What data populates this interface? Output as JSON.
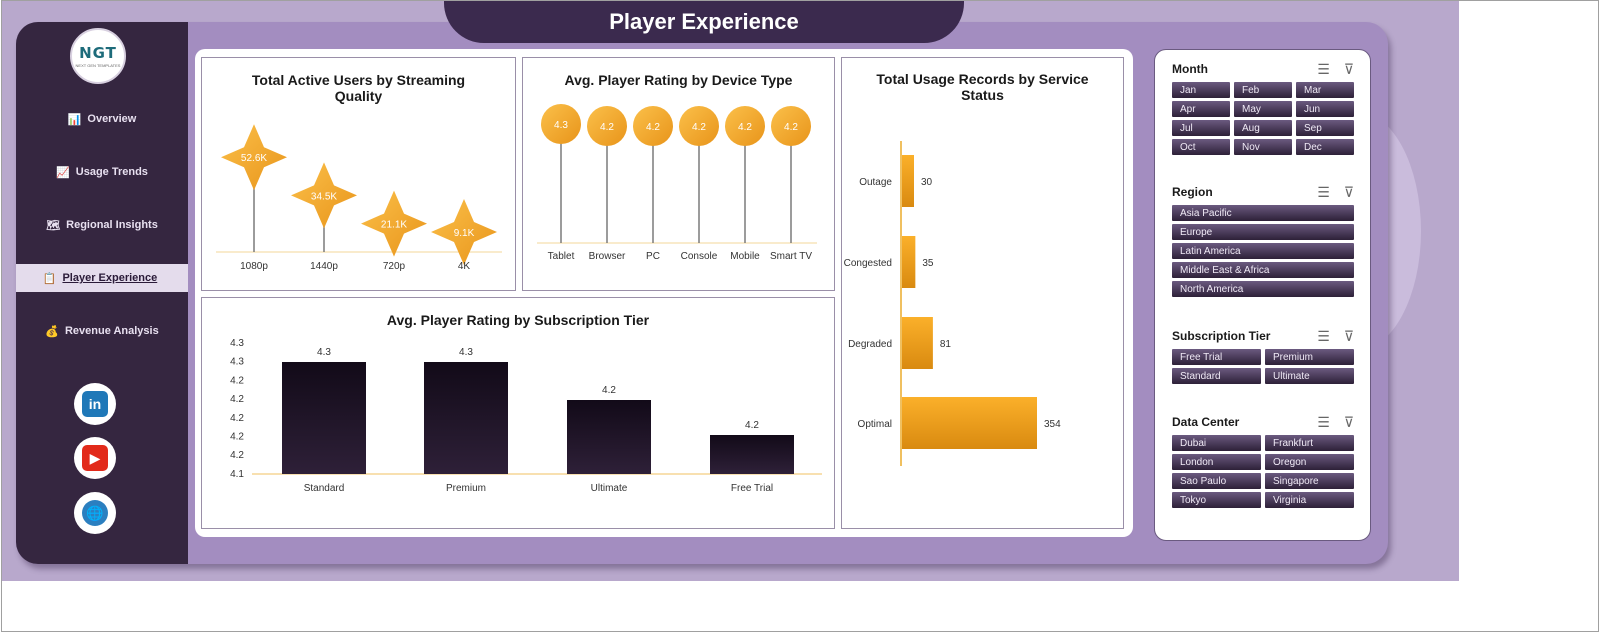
{
  "header": {
    "title": "Player Experience"
  },
  "logo": {
    "text": "NGT",
    "subtext": "NEXT GEN TEMPLATES"
  },
  "sidebar": {
    "items": [
      {
        "label": "Overview",
        "icon": "📊"
      },
      {
        "label": "Usage Trends",
        "icon": "📈"
      },
      {
        "label": "Regional Insights",
        "icon": "🗺"
      },
      {
        "label": "Player Experience",
        "icon": "📋"
      },
      {
        "label": "Revenue Analysis",
        "icon": "💰"
      }
    ],
    "social": [
      {
        "name": "linkedin-icon",
        "glyph": "in"
      },
      {
        "name": "youtube-icon",
        "glyph": "▶"
      },
      {
        "name": "web-icon",
        "glyph": "🌐"
      }
    ]
  },
  "charts": {
    "streaming": {
      "title": "Total Active Users by Streaming Quality",
      "chart_data": {
        "type": "lollipop",
        "categories": [
          "1080p",
          "1440p",
          "720p",
          "4K"
        ],
        "values": [
          52.6,
          34.5,
          21.1,
          9.1
        ],
        "labels": [
          "52.6K",
          "34.5K",
          "21.1K",
          "9.1K"
        ]
      }
    },
    "device": {
      "title": "Avg. Player Rating by Device Type",
      "chart_data": {
        "type": "lollipop",
        "categories": [
          "Tablet",
          "Browser",
          "PC",
          "Console",
          "Mobile",
          "Smart TV"
        ],
        "values": [
          4.3,
          4.2,
          4.2,
          4.2,
          4.2,
          4.2
        ]
      }
    },
    "service": {
      "title": "Total Usage Records by Service Status",
      "chart_data": {
        "type": "bar-horizontal",
        "categories": [
          "Outage",
          "Congested",
          "Degraded",
          "Optimal"
        ],
        "values": [
          30,
          35,
          81,
          354
        ]
      }
    },
    "tier": {
      "title": "Avg. Player Rating by Subscription Tier",
      "chart_data": {
        "type": "bar",
        "categories": [
          "Standard",
          "Premium",
          "Ultimate",
          "Free Trial"
        ],
        "values": [
          4.3,
          4.3,
          4.2,
          4.2
        ],
        "labels": [
          "4.3",
          "4.3",
          "4.2",
          "4.2"
        ],
        "y_ticks": [
          "4.3",
          "4.3",
          "4.2",
          "4.2",
          "4.2",
          "4.2",
          "4.2",
          "4.1"
        ]
      }
    }
  },
  "filters": [
    {
      "title": "Month",
      "cols": 3,
      "items": [
        "Jan",
        "Feb",
        "Mar",
        "Apr",
        "May",
        "Jun",
        "Jul",
        "Aug",
        "Sep",
        "Oct",
        "Nov",
        "Dec"
      ]
    },
    {
      "title": "Region",
      "cols": 1,
      "items": [
        "Asia Pacific",
        "Europe",
        "Latin America",
        "Middle East & Africa",
        "North America"
      ]
    },
    {
      "title": "Subscription Tier",
      "cols": 2,
      "items": [
        "Free Trial",
        "Premium",
        "Standard",
        "Ultimate"
      ]
    },
    {
      "title": "Data Center",
      "cols": 2,
      "items": [
        "Dubai",
        "Frankfurt",
        "London",
        "Oregon",
        "Sao Paulo",
        "Singapore",
        "Tokyo",
        "Virginia"
      ]
    }
  ],
  "colors": {
    "accent": "#f5a623",
    "dark": "#352640",
    "panel": "#a38dc0",
    "bar": "#1e1226"
  }
}
